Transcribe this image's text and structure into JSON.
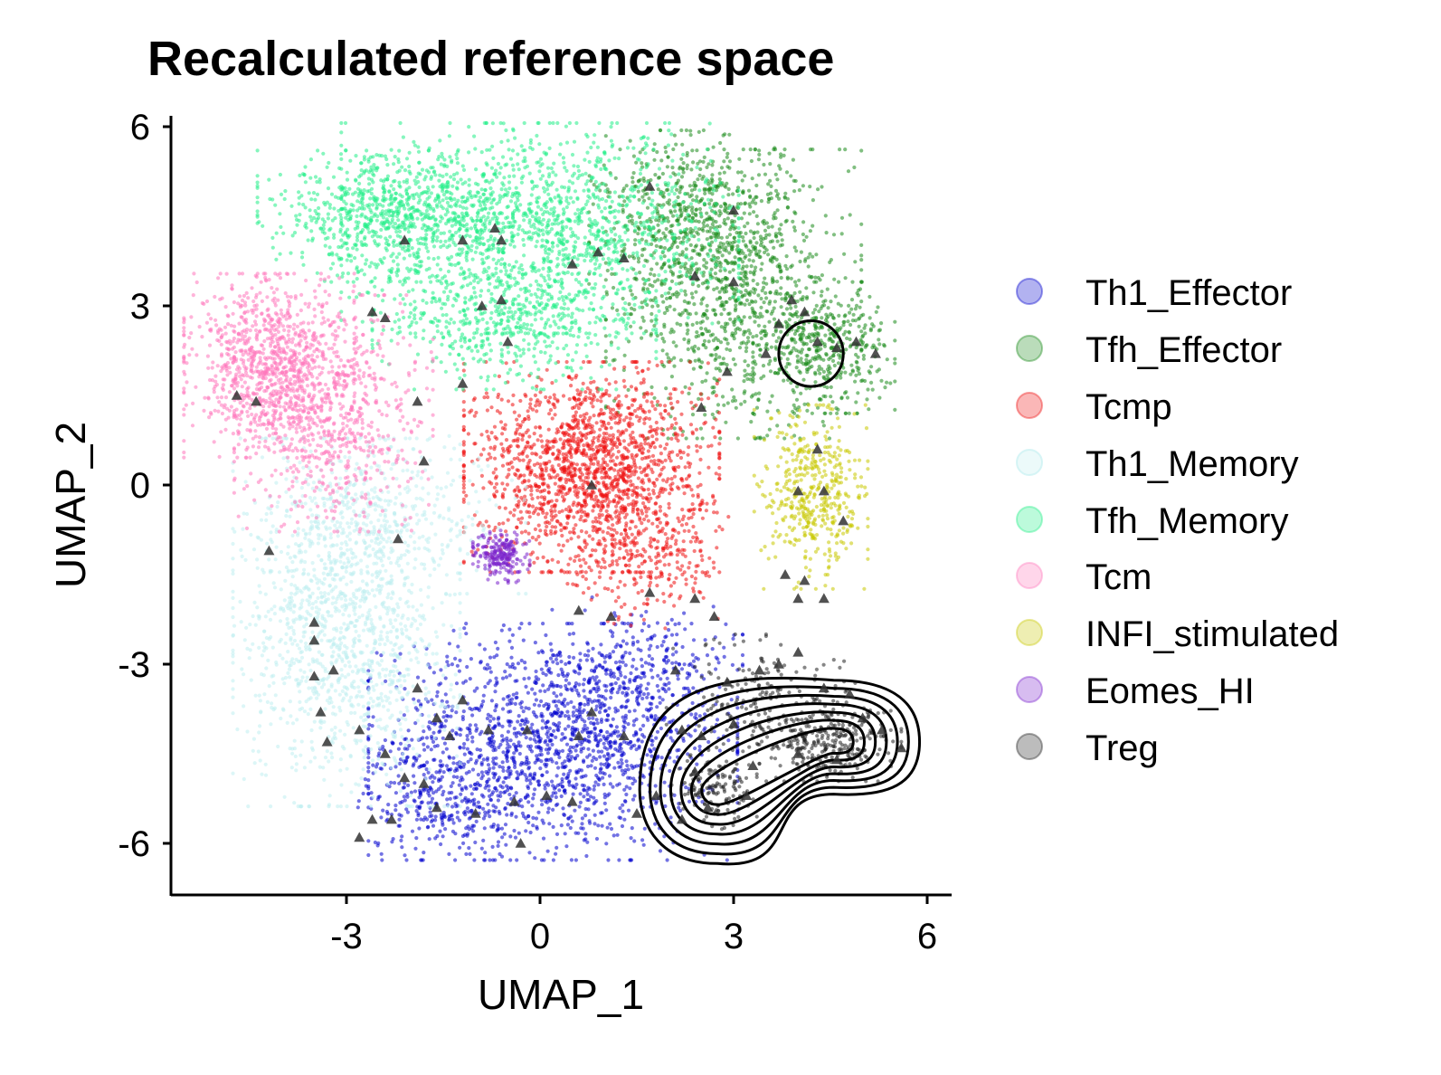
{
  "chart_data": {
    "type": "scatter",
    "title": "Recalculated reference space",
    "xlabel": "UMAP_1",
    "ylabel": "UMAP_2",
    "xlim": [
      -5.8,
      6.3
    ],
    "ylim": [
      -6.8,
      6.2
    ],
    "xticks": [
      "-3",
      "0",
      "3",
      "6"
    ],
    "yticks": [
      "6",
      "3",
      "0",
      "-3",
      "-6"
    ],
    "legend_position": "right",
    "grid": false,
    "series": [
      {
        "name": "Th1_Effector",
        "color": "#0000cd",
        "clusters": [
          {
            "cx": 0.2,
            "cy": -4.3,
            "sx": 1.3,
            "sy": 0.9,
            "n": 1600
          },
          {
            "cx": -1.5,
            "cy": -5.3,
            "sx": 0.6,
            "sy": 0.4,
            "n": 250
          },
          {
            "cx": 1.6,
            "cy": -3.2,
            "sx": 0.7,
            "sy": 0.6,
            "n": 250
          }
        ]
      },
      {
        "name": "Tfh_Effector",
        "color": "#1a8a1a",
        "clusters": [
          {
            "cx": 3.0,
            "cy": 3.2,
            "sx": 0.9,
            "sy": 1.1,
            "n": 1000
          },
          {
            "cx": 4.4,
            "cy": 2.3,
            "sx": 0.5,
            "sy": 0.5,
            "n": 400
          },
          {
            "cx": 2.3,
            "cy": 4.4,
            "sx": 0.7,
            "sy": 0.7,
            "n": 500
          }
        ]
      },
      {
        "name": "Tcmp",
        "color": "#ee1111",
        "clusters": [
          {
            "cx": 0.8,
            "cy": 0.3,
            "sx": 0.9,
            "sy": 0.8,
            "n": 1700
          },
          {
            "cx": 1.6,
            "cy": -1.3,
            "sx": 0.6,
            "sy": 0.5,
            "n": 250
          }
        ]
      },
      {
        "name": "Th1_Memory",
        "color": "#bfeff0",
        "clusters": [
          {
            "cx": -3.0,
            "cy": -2.3,
            "sx": 0.8,
            "sy": 1.4,
            "n": 1400
          },
          {
            "cx": -2.2,
            "cy": -0.5,
            "sx": 0.9,
            "sy": 0.6,
            "n": 300
          }
        ]
      },
      {
        "name": "Tfh_Memory",
        "color": "#22ee88",
        "clusters": [
          {
            "cx": -2.4,
            "cy": 4.5,
            "sx": 0.9,
            "sy": 0.5,
            "n": 700
          },
          {
            "cx": 0.0,
            "cy": 4.3,
            "sx": 1.4,
            "sy": 0.8,
            "n": 1500
          },
          {
            "cx": -0.4,
            "cy": 2.7,
            "sx": 1.0,
            "sy": 0.5,
            "n": 500
          }
        ]
      },
      {
        "name": "Tcm",
        "color": "#ff77bb",
        "clusters": [
          {
            "cx": -4.2,
            "cy": 2.0,
            "sx": 0.6,
            "sy": 0.7,
            "n": 900
          },
          {
            "cx": -3.2,
            "cy": 1.2,
            "sx": 0.7,
            "sy": 0.9,
            "n": 700
          }
        ]
      },
      {
        "name": "INFI_stimulated",
        "color": "#c8c800",
        "clusters": [
          {
            "cx": 4.2,
            "cy": -0.2,
            "sx": 0.4,
            "sy": 0.7,
            "n": 450
          }
        ]
      },
      {
        "name": "Eomes_HI",
        "color": "#7a22cc",
        "clusters": [
          {
            "cx": -0.6,
            "cy": -1.2,
            "sx": 0.2,
            "sy": 0.2,
            "n": 220
          }
        ]
      },
      {
        "name": "Treg",
        "color": "#222222",
        "clusters": [
          {
            "cx": 4.5,
            "cy": -4.3,
            "sx": 0.5,
            "sy": 0.3,
            "n": 300
          },
          {
            "cx": 2.7,
            "cy": -5.1,
            "sx": 0.3,
            "sy": 0.3,
            "n": 150
          },
          {
            "cx": 3.5,
            "cy": -3.6,
            "sx": 0.7,
            "sy": 0.5,
            "n": 200
          }
        ]
      }
    ],
    "query_points": {
      "marker": "triangle",
      "color": "#333333",
      "points": [
        [
          -1.2,
          4.1
        ],
        [
          -0.7,
          4.3
        ],
        [
          -0.6,
          4.1
        ],
        [
          0.5,
          3.7
        ],
        [
          0.9,
          3.9
        ],
        [
          1.3,
          3.8
        ],
        [
          2.4,
          3.5
        ],
        [
          3.0,
          3.4
        ],
        [
          3.7,
          2.7
        ],
        [
          3.9,
          3.1
        ],
        [
          4.1,
          2.9
        ],
        [
          4.3,
          2.4
        ],
        [
          4.6,
          2.3
        ],
        [
          4.9,
          2.4
        ],
        [
          5.2,
          2.2
        ],
        [
          3.0,
          4.6
        ],
        [
          1.7,
          5.0
        ],
        [
          -2.1,
          4.1
        ],
        [
          -0.9,
          3.0
        ],
        [
          -0.6,
          3.1
        ],
        [
          -0.5,
          2.4
        ],
        [
          -1.2,
          1.7
        ],
        [
          -2.6,
          2.9
        ],
        [
          -2.4,
          2.8
        ],
        [
          -4.7,
          1.5
        ],
        [
          -4.4,
          1.4
        ],
        [
          -1.9,
          1.4
        ],
        [
          -1.8,
          0.4
        ],
        [
          2.5,
          1.3
        ],
        [
          2.9,
          1.9
        ],
        [
          3.5,
          2.2
        ],
        [
          4.3,
          0.6
        ],
        [
          4.0,
          -0.1
        ],
        [
          4.4,
          -0.1
        ],
        [
          4.7,
          -0.6
        ],
        [
          3.8,
          -1.5
        ],
        [
          4.1,
          -1.6
        ],
        [
          4.4,
          -1.9
        ],
        [
          4.0,
          -1.9
        ],
        [
          0.8,
          0.0
        ],
        [
          1.7,
          -1.8
        ],
        [
          2.4,
          -1.9
        ],
        [
          2.7,
          -2.2
        ],
        [
          1.1,
          -2.2
        ],
        [
          0.6,
          -2.1
        ],
        [
          -4.2,
          -1.1
        ],
        [
          -2.2,
          -0.9
        ],
        [
          -3.5,
          -2.3
        ],
        [
          -3.5,
          -2.6
        ],
        [
          -3.2,
          -3.1
        ],
        [
          -3.5,
          -3.2
        ],
        [
          -3.4,
          -3.8
        ],
        [
          -3.3,
          -4.3
        ],
        [
          -2.8,
          -4.1
        ],
        [
          -1.9,
          -3.4
        ],
        [
          -1.6,
          -3.9
        ],
        [
          -1.2,
          -3.6
        ],
        [
          -1.4,
          -4.2
        ],
        [
          -0.8,
          -4.1
        ],
        [
          -0.2,
          -4.1
        ],
        [
          -2.4,
          -4.5
        ],
        [
          -2.1,
          -4.9
        ],
        [
          -1.8,
          -5.0
        ],
        [
          -1.6,
          -5.4
        ],
        [
          -2.3,
          -5.6
        ],
        [
          -2.6,
          -5.6
        ],
        [
          -2.8,
          -5.9
        ],
        [
          -1.0,
          -5.5
        ],
        [
          -0.4,
          -5.3
        ],
        [
          0.5,
          -5.3
        ],
        [
          0.1,
          -5.2
        ],
        [
          -0.3,
          -6.0
        ],
        [
          0.6,
          -4.2
        ],
        [
          0.8,
          -3.8
        ],
        [
          1.3,
          -4.2
        ],
        [
          1.5,
          -5.5
        ],
        [
          1.8,
          -5.2
        ],
        [
          2.2,
          -4.1
        ],
        [
          2.5,
          -4.2
        ],
        [
          3.0,
          -4.0
        ],
        [
          2.9,
          -3.3
        ],
        [
          3.4,
          -3.1
        ],
        [
          3.7,
          -3.0
        ],
        [
          4.0,
          -2.8
        ],
        [
          4.4,
          -3.4
        ],
        [
          4.8,
          -3.5
        ],
        [
          5.0,
          -3.9
        ],
        [
          5.3,
          -4.1
        ],
        [
          5.6,
          -4.4
        ],
        [
          3.3,
          -4.7
        ],
        [
          2.6,
          -5.4
        ],
        [
          2.4,
          -4.8
        ],
        [
          2.2,
          -5.6
        ],
        [
          3.2,
          -5.2
        ],
        [
          4.0,
          -4.5
        ],
        [
          4.6,
          -4.6
        ],
        [
          2.1,
          -3.1
        ]
      ]
    },
    "contours": [
      {
        "cx": 4.2,
        "cy": 2.2,
        "rx": 0.5,
        "ry": 0.55
      },
      {
        "center_a": [
          2.75,
          -5.1
        ],
        "center_b": [
          4.55,
          -4.3
        ],
        "levels": 7
      }
    ]
  },
  "legend": {
    "items": [
      {
        "label": "Th1_Effector",
        "color": "#0000cd"
      },
      {
        "label": "Tfh_Effector",
        "color": "#1a8a1a"
      },
      {
        "label": "Tcmp",
        "color": "#ee1111"
      },
      {
        "label": "Th1_Memory",
        "color": "#bfeff0"
      },
      {
        "label": "Tfh_Memory",
        "color": "#22ee88"
      },
      {
        "label": "Tcm",
        "color": "#ff77bb"
      },
      {
        "label": "INFI_stimulated",
        "color": "#c8c800"
      },
      {
        "label": "Eomes_HI",
        "color": "#7a22cc"
      },
      {
        "label": "Treg",
        "color": "#222222"
      }
    ]
  }
}
